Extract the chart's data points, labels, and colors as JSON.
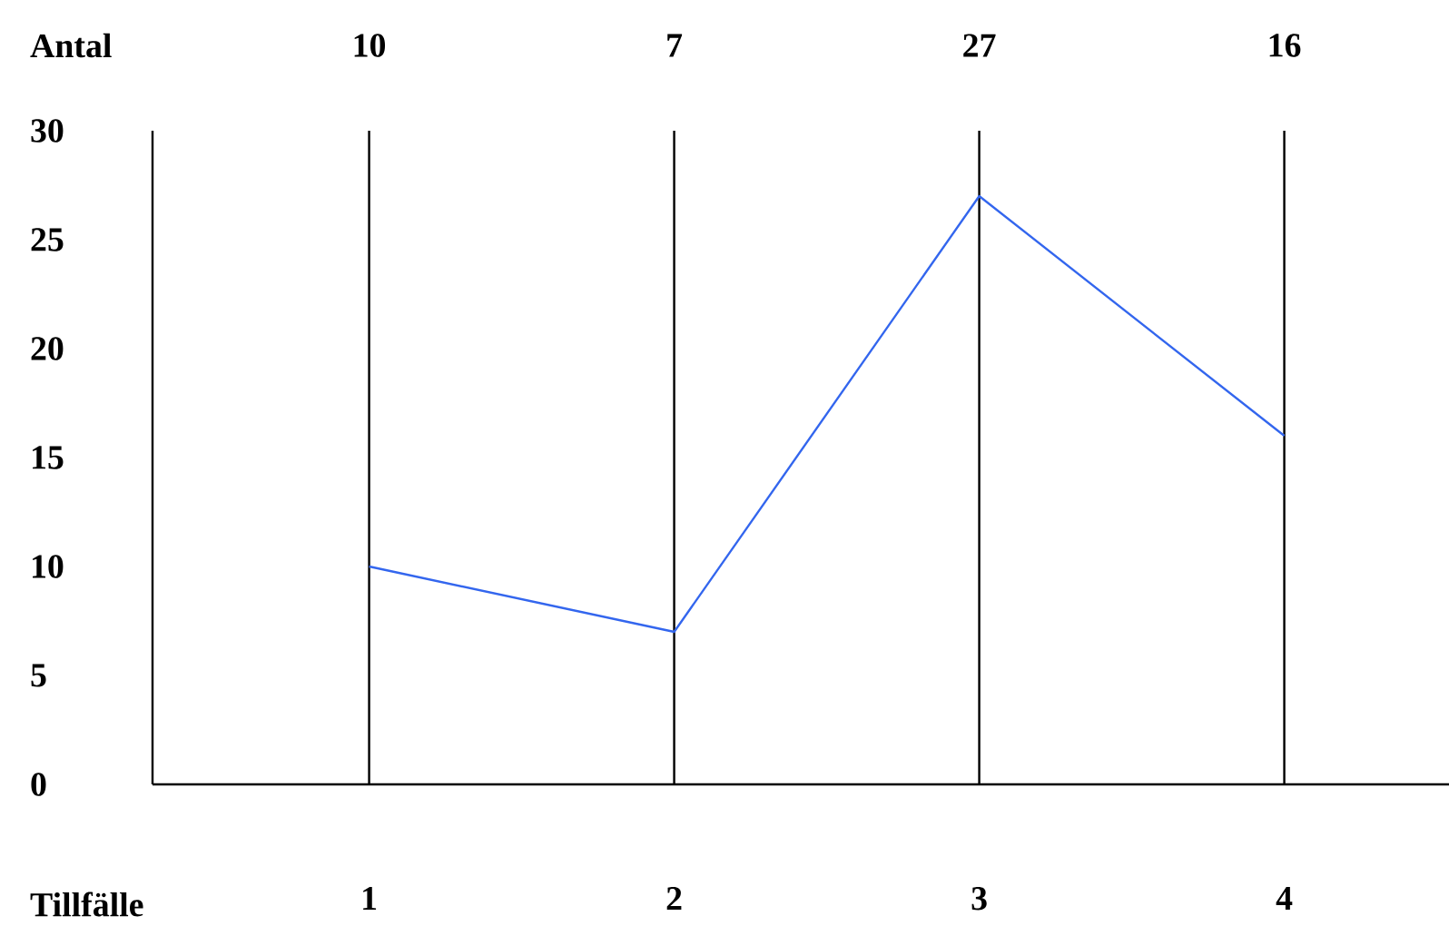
{
  "chart_data": {
    "type": "line",
    "xlabel": "Tillfälle",
    "ylabel": "Antal",
    "categories": [
      "1",
      "2",
      "3",
      "4"
    ],
    "series": [
      {
        "color": "#3366ee",
        "values": [
          10,
          7,
          27,
          16
        ]
      }
    ],
    "ylim": [
      0,
      30
    ],
    "yticks": [
      0,
      5,
      10,
      15,
      20,
      25,
      30
    ],
    "grid": "x",
    "data_labels": true,
    "marker": "none",
    "line_style": "solid"
  }
}
